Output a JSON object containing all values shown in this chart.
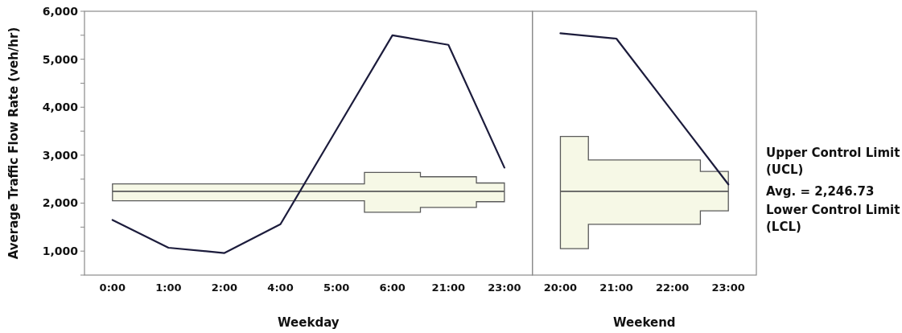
{
  "chart_data": [
    {
      "type": "line",
      "xlabel": "Weekday",
      "ylabel": "Average Traffic Flow Rate (veh/hr)",
      "categories": [
        "0:00",
        "1:00",
        "2:00",
        "4:00",
        "5:00",
        "6:00",
        "21:00",
        "23:00"
      ],
      "ylim": [
        500,
        6000
      ],
      "yticks": [
        {
          "value": 500,
          "label": null
        },
        {
          "value": 1000,
          "label": "1,000"
        },
        {
          "value": 1500,
          "label": null
        },
        {
          "value": 2000,
          "label": "2,000"
        },
        {
          "value": 2500,
          "label": null
        },
        {
          "value": 3000,
          "label": "3,000"
        },
        {
          "value": 3500,
          "label": null
        },
        {
          "value": 4000,
          "label": "4,000"
        },
        {
          "value": 4500,
          "label": null
        },
        {
          "value": 5000,
          "label": "5,000"
        },
        {
          "value": 5500,
          "label": null
        },
        {
          "value": 6000,
          "label": "6,000"
        }
      ],
      "series": [
        {
          "type": "step",
          "color": "#5a5a5a",
          "values": [
            2246.73,
            2246.73,
            2246.73,
            2246.73,
            2246.73,
            2246.73,
            2246.73,
            2246.73
          ],
          "lower": [
            2050,
            2050,
            2050,
            2050,
            2050,
            1810,
            1910,
            2030
          ],
          "upper": [
            2400,
            2400,
            2400,
            2400,
            2400,
            2640,
            2550,
            2420
          ]
        },
        {
          "color": "#1c1c3c",
          "values": [
            1650,
            1070,
            960,
            1560,
            3530,
            5500,
            5300,
            2740
          ]
        }
      ]
    },
    {
      "type": "line",
      "xlabel": "Weekend",
      "tick_labels": "x",
      "categories": [
        "20:00",
        "21:00",
        "22:00",
        "23:00"
      ],
      "ylim": [
        500,
        6000
      ],
      "annotations": [
        "Upper Control Limit (UCL)",
        "Lower Control Limit (LCL)"
      ],
      "series": [
        {
          "type": "step",
          "name": "Avg. = 2,246.73",
          "color": "#5a5a5a",
          "values": [
            2246.73,
            2246.73,
            2246.73,
            2246.73
          ],
          "lower": [
            1050,
            1560,
            1560,
            1840
          ],
          "upper": [
            3390,
            2900,
            2900,
            2660
          ]
        },
        {
          "color": "#1c1c3c",
          "values": [
            5540,
            5430,
            3910,
            2390
          ]
        }
      ]
    }
  ]
}
